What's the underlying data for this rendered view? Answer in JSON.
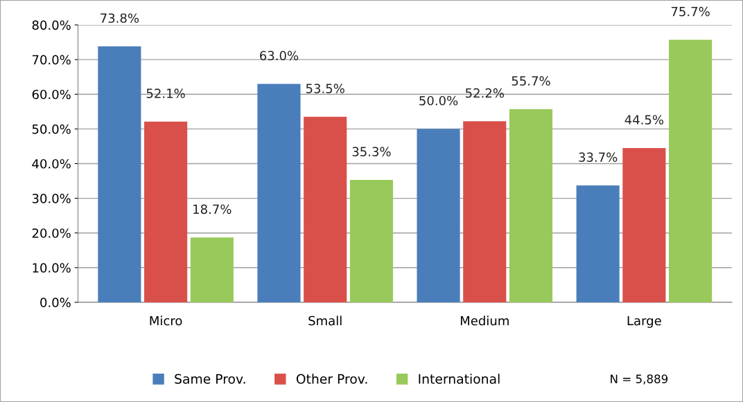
{
  "chart_data": {
    "type": "bar",
    "categories": [
      "Micro",
      "Small",
      "Medium",
      "Large"
    ],
    "series": [
      {
        "name": "Same Prov.",
        "color": "#4a7ebb",
        "values": [
          73.8,
          63.0,
          50.0,
          33.7
        ],
        "value_labels": [
          "73.8%",
          "63.0%",
          "50.0%",
          "33.7%"
        ]
      },
      {
        "name": "Other Prov.",
        "color": "#d9504a",
        "values": [
          52.1,
          53.5,
          52.2,
          44.5
        ],
        "value_labels": [
          "52.1%",
          "53.5%",
          "52.2%",
          "44.5%"
        ]
      },
      {
        "name": "International",
        "color": "#98c95a",
        "values": [
          18.7,
          35.3,
          55.7,
          75.7
        ],
        "value_labels": [
          "18.7%",
          "35.3%",
          "55.7%",
          "75.7%"
        ]
      }
    ],
    "ylim": [
      0,
      80
    ],
    "yticks": [
      {
        "value": 0,
        "label": "0.0%"
      },
      {
        "value": 10,
        "label": "10.0%"
      },
      {
        "value": 20,
        "label": "20.0%"
      },
      {
        "value": 30,
        "label": "30.0%"
      },
      {
        "value": 40,
        "label": "40.0%"
      },
      {
        "value": 50,
        "label": "50.0%"
      },
      {
        "value": 60,
        "label": "60.0%"
      },
      {
        "value": 70,
        "label": "70.0%"
      },
      {
        "value": 80,
        "label": "80.0%"
      }
    ],
    "grid": "y",
    "legend": "bottom",
    "annotations": [
      "N = 5,889"
    ]
  }
}
